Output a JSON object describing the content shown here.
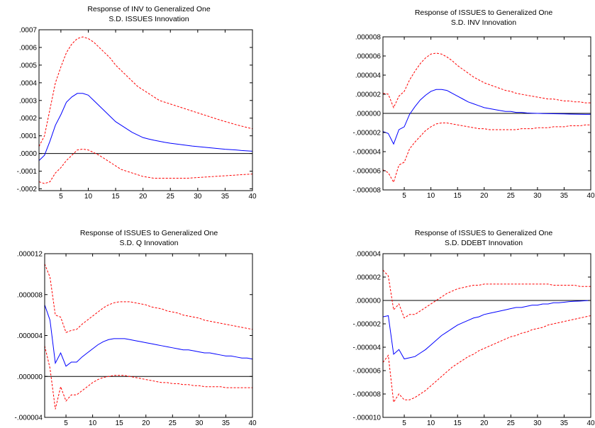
{
  "colors": {
    "impulse": "#0000ff",
    "band": "#ff0000",
    "zero_line": "#000000",
    "frame": "#000000"
  },
  "chart_data": [
    {
      "type": "line",
      "title": "Response of INV to Generalized One",
      "subtitle": "S.D. ISSUES Innovation",
      "xlabel": "",
      "ylabel": "",
      "xlim": [
        1,
        40
      ],
      "ylim": [
        -0.00021,
        0.0007
      ],
      "x_ticks": [
        5,
        10,
        15,
        20,
        25,
        30,
        35,
        40
      ],
      "x_tick_labels": [
        "5",
        "10",
        "15",
        "20",
        "25",
        "30",
        "35",
        "40"
      ],
      "y_ticks": [
        -0.0002,
        -0.0001,
        0,
        0.0001,
        0.0002,
        0.0003,
        0.0004,
        0.0005,
        0.0006,
        0.0007
      ],
      "y_tick_labels": [
        "-.0002",
        "-.0001",
        ".0000",
        ".0001",
        ".0002",
        ".0003",
        ".0004",
        ".0005",
        ".0006",
        ".0007"
      ],
      "x": [
        1,
        2,
        3,
        4,
        5,
        6,
        7,
        8,
        9,
        10,
        11,
        12,
        13,
        14,
        15,
        16,
        17,
        18,
        19,
        20,
        21,
        22,
        23,
        24,
        25,
        26,
        27,
        28,
        29,
        30,
        31,
        32,
        33,
        34,
        35,
        36,
        37,
        38,
        39,
        40
      ],
      "series": [
        {
          "role": "response",
          "style": "solid",
          "values": [
            -4e-05,
            -1e-05,
            7e-05,
            0.00016,
            0.00022,
            0.00029,
            0.00032,
            0.00034,
            0.00034,
            0.00033,
            0.0003,
            0.00027,
            0.00024,
            0.00021,
            0.00018,
            0.00016,
            0.00014,
            0.00012,
            0.000105,
            9e-05,
            8.2e-05,
            7.5e-05,
            6.9e-05,
            6.3e-05,
            5.8e-05,
            5.4e-05,
            5e-05,
            4.6e-05,
            4.2e-05,
            3.9e-05,
            3.6e-05,
            3.3e-05,
            3e-05,
            2.7e-05,
            2.4e-05,
            2.2e-05,
            2e-05,
            1.7e-05,
            1.5e-05,
            1.3e-05
          ]
        },
        {
          "role": "upper band",
          "style": "dashed",
          "values": [
            4e-05,
            0.0001,
            0.00025,
            0.0004,
            0.00049,
            0.00057,
            0.00062,
            0.00065,
            0.00066,
            0.00065,
            0.00063,
            0.0006,
            0.00057,
            0.00054,
            0.0005,
            0.00047,
            0.00044,
            0.00041,
            0.00038,
            0.00036,
            0.00034,
            0.00032,
            0.0003,
            0.00029,
            0.00028,
            0.00027,
            0.00026,
            0.00025,
            0.00024,
            0.00023,
            0.00022,
            0.00021,
            0.0002,
            0.00019,
            0.000181,
            0.000172,
            0.000163,
            0.000155,
            0.000147,
            0.00014
          ]
        },
        {
          "role": "lower band",
          "style": "dashed",
          "values": [
            -0.00016,
            -0.00017,
            -0.00016,
            -0.00011,
            -8e-05,
            -4e-05,
            -1e-05,
            2e-05,
            2.5e-05,
            2e-05,
            5e-06,
            -1e-05,
            -3e-05,
            -5e-05,
            -7e-05,
            -9e-05,
            -0.0001,
            -0.00011,
            -0.00012,
            -0.00013,
            -0.000135,
            -0.00014,
            -0.00014,
            -0.00014,
            -0.00014,
            -0.00014,
            -0.00014,
            -0.00014,
            -0.000138,
            -0.000136,
            -0.000134,
            -0.000132,
            -0.00013,
            -0.000128,
            -0.000126,
            -0.000124,
            -0.000122,
            -0.00012,
            -0.000118,
            -0.000116
          ]
        }
      ]
    },
    {
      "type": "line",
      "title": "Response of ISSUES to Generalized One",
      "subtitle": "S.D. INV Innovation",
      "xlabel": "",
      "ylabel": "",
      "xlim": [
        1,
        40
      ],
      "ylim": [
        -8e-06,
        8e-06
      ],
      "x_ticks": [
        5,
        10,
        15,
        20,
        25,
        30,
        35,
        40
      ],
      "x_tick_labels": [
        "5",
        "10",
        "15",
        "20",
        "25",
        "30",
        "35",
        "40"
      ],
      "y_ticks": [
        -8e-06,
        -6e-06,
        -4e-06,
        -2e-06,
        0,
        2e-06,
        4e-06,
        6e-06,
        8e-06
      ],
      "y_tick_labels": [
        "-.000008",
        "-.000006",
        "-.000004",
        "-.000002",
        ".000000",
        ".000002",
        ".000004",
        ".000006",
        ".000008"
      ],
      "x": [
        1,
        2,
        3,
        4,
        5,
        6,
        7,
        8,
        9,
        10,
        11,
        12,
        13,
        14,
        15,
        16,
        17,
        18,
        19,
        20,
        21,
        22,
        23,
        24,
        25,
        26,
        27,
        28,
        29,
        30,
        31,
        32,
        33,
        34,
        35,
        36,
        37,
        38,
        39,
        40
      ],
      "series": [
        {
          "role": "response",
          "style": "solid",
          "values": [
            -1.9e-06,
            -2.1e-06,
            -3.2e-06,
            -1.7e-06,
            -1.4e-06,
            -1e-07,
            7e-07,
            1.4e-06,
            1.9e-06,
            2.3e-06,
            2.5e-06,
            2.5e-06,
            2.4e-06,
            2.1e-06,
            1.8e-06,
            1.5e-06,
            1.2e-06,
            1e-06,
            8e-07,
            6e-07,
            5e-07,
            4e-07,
            3e-07,
            2e-07,
            2e-07,
            1e-07,
            1e-07,
            5e-08,
            2e-08,
            0.0,
            -2e-08,
            -3e-08,
            -4e-08,
            -5e-08,
            -6e-08,
            -7e-08,
            -8e-08,
            -9e-08,
            -1e-07,
            -1e-07
          ]
        },
        {
          "role": "upper band",
          "style": "dashed",
          "values": [
            2.1e-06,
            2e-06,
            6e-07,
            1.8e-06,
            2.3e-06,
            3.5e-06,
            4.4e-06,
            5.2e-06,
            5.8e-06,
            6.2e-06,
            6.3e-06,
            6.2e-06,
            5.9e-06,
            5.5e-06,
            5e-06,
            4.6e-06,
            4.2e-06,
            3.8e-06,
            3.5e-06,
            3.2e-06,
            3e-06,
            2.8e-06,
            2.6e-06,
            2.4e-06,
            2.3e-06,
            2.1e-06,
            2e-06,
            1.9e-06,
            1.8e-06,
            1.7e-06,
            1.6e-06,
            1.5e-06,
            1.5e-06,
            1.4e-06,
            1.3e-06,
            1.3e-06,
            1.2e-06,
            1.2e-06,
            1.1e-06,
            1.1e-06
          ]
        },
        {
          "role": "lower band",
          "style": "dashed",
          "values": [
            -5.9e-06,
            -6.2e-06,
            -7.2e-06,
            -5.4e-06,
            -5.1e-06,
            -3.7e-06,
            -3e-06,
            -2.4e-06,
            -1.8e-06,
            -1.4e-06,
            -1.1e-06,
            -1e-06,
            -1e-06,
            -1.1e-06,
            -1.2e-06,
            -1.3e-06,
            -1.4e-06,
            -1.5e-06,
            -1.6e-06,
            -1.6e-06,
            -1.7e-06,
            -1.7e-06,
            -1.7e-06,
            -1.7e-06,
            -1.7e-06,
            -1.7e-06,
            -1.6e-06,
            -1.6e-06,
            -1.6e-06,
            -1.5e-06,
            -1.5e-06,
            -1.5e-06,
            -1.4e-06,
            -1.4e-06,
            -1.4e-06,
            -1.3e-06,
            -1.3e-06,
            -1.3e-06,
            -1.2e-06,
            -1.2e-06
          ]
        }
      ]
    },
    {
      "type": "line",
      "title": "Response of ISSUES to Generalized One",
      "subtitle": "S.D. Q Innovation",
      "xlabel": "",
      "ylabel": "",
      "xlim": [
        1,
        40
      ],
      "ylim": [
        -4e-06,
        1.2e-05
      ],
      "x_ticks": [
        5,
        10,
        15,
        20,
        25,
        30,
        35,
        40
      ],
      "x_tick_labels": [
        "5",
        "10",
        "15",
        "20",
        "25",
        "30",
        "35",
        "40"
      ],
      "y_ticks": [
        -4e-06,
        0,
        4e-06,
        8e-06,
        1.2e-05
      ],
      "y_tick_labels": [
        "-.000004",
        ".000000",
        ".000004",
        ".000008",
        ".000012"
      ],
      "x": [
        1,
        2,
        3,
        4,
        5,
        6,
        7,
        8,
        9,
        10,
        11,
        12,
        13,
        14,
        15,
        16,
        17,
        18,
        19,
        20,
        21,
        22,
        23,
        24,
        25,
        26,
        27,
        28,
        29,
        30,
        31,
        32,
        33,
        34,
        35,
        36,
        37,
        38,
        39,
        40
      ],
      "series": [
        {
          "role": "response",
          "style": "solid",
          "values": [
            7e-06,
            5.5e-06,
            1.3e-06,
            2.3e-06,
            1e-06,
            1.4e-06,
            1.4e-06,
            1.9e-06,
            2.3e-06,
            2.7e-06,
            3.1e-06,
            3.4e-06,
            3.6e-06,
            3.7e-06,
            3.7e-06,
            3.7e-06,
            3.6e-06,
            3.5e-06,
            3.4e-06,
            3.3e-06,
            3.2e-06,
            3.1e-06,
            3e-06,
            2.9e-06,
            2.8e-06,
            2.7e-06,
            2.6e-06,
            2.6e-06,
            2.5e-06,
            2.4e-06,
            2.3e-06,
            2.3e-06,
            2.2e-06,
            2.1e-06,
            2e-06,
            2e-06,
            1.9e-06,
            1.8e-06,
            1.8e-06,
            1.7e-06
          ]
        },
        {
          "role": "upper band",
          "style": "dashed",
          "values": [
            1.1e-05,
            9.7e-06,
            6e-06,
            5.8e-06,
            4.3e-06,
            4.5e-06,
            4.6e-06,
            5.1e-06,
            5.5e-06,
            5.9e-06,
            6.3e-06,
            6.7e-06,
            7e-06,
            7.2e-06,
            7.3e-06,
            7.3e-06,
            7.3e-06,
            7.2e-06,
            7.1e-06,
            7e-06,
            6.8e-06,
            6.7e-06,
            6.6e-06,
            6.4e-06,
            6.3e-06,
            6.2e-06,
            6e-06,
            5.9e-06,
            5.8e-06,
            5.7e-06,
            5.5e-06,
            5.4e-06,
            5.3e-06,
            5.2e-06,
            5.1e-06,
            5e-06,
            4.9e-06,
            4.8e-06,
            4.7e-06,
            4.6e-06
          ]
        },
        {
          "role": "lower band",
          "style": "dashed",
          "values": [
            3e-06,
            8e-07,
            -3.2e-06,
            -1e-06,
            -2.4e-06,
            -1.8e-06,
            -1.8e-06,
            -1.4e-06,
            -1e-06,
            -6e-07,
            -3e-07,
            -1e-07,
            0.0,
            1e-07,
            1e-07,
            1e-07,
            0.0,
            -1e-07,
            -2e-07,
            -3e-07,
            -4e-07,
            -5e-07,
            -6e-07,
            -6e-07,
            -7e-07,
            -7e-07,
            -8e-07,
            -8e-07,
            -9e-07,
            -9e-07,
            -1e-06,
            -1e-06,
            -1e-06,
            -1e-06,
            -1.1e-06,
            -1.1e-06,
            -1.1e-06,
            -1.1e-06,
            -1.1e-06,
            -1.1e-06
          ]
        }
      ]
    },
    {
      "type": "line",
      "title": "Response of ISSUES to Generalized One",
      "subtitle": "S.D. DDEBT Innovation",
      "xlabel": "",
      "ylabel": "",
      "xlim": [
        1,
        40
      ],
      "ylim": [
        -1e-05,
        4e-06
      ],
      "x_ticks": [
        5,
        10,
        15,
        20,
        25,
        30,
        35,
        40
      ],
      "x_tick_labels": [
        "5",
        "10",
        "15",
        "20",
        "25",
        "30",
        "35",
        "40"
      ],
      "y_ticks": [
        -1e-05,
        -8e-06,
        -6e-06,
        -4e-06,
        -2e-06,
        0,
        2e-06,
        4e-06
      ],
      "y_tick_labels": [
        "-.000010",
        "-.000008",
        "-.000006",
        "-.000004",
        "-.000002",
        ".000000",
        ".000002",
        ".000004"
      ],
      "x": [
        1,
        2,
        3,
        4,
        5,
        6,
        7,
        8,
        9,
        10,
        11,
        12,
        13,
        14,
        15,
        16,
        17,
        18,
        19,
        20,
        21,
        22,
        23,
        24,
        25,
        26,
        27,
        28,
        29,
        30,
        31,
        32,
        33,
        34,
        35,
        36,
        37,
        38,
        39,
        40
      ],
      "series": [
        {
          "role": "response",
          "style": "solid",
          "values": [
            -1.4e-06,
            -1.3e-06,
            -4.6e-06,
            -4.2e-06,
            -5e-06,
            -4.9e-06,
            -4.8e-06,
            -4.5e-06,
            -4.2e-06,
            -3.8e-06,
            -3.4e-06,
            -3e-06,
            -2.7e-06,
            -2.4e-06,
            -2.1e-06,
            -1.9e-06,
            -1.7e-06,
            -1.5e-06,
            -1.4e-06,
            -1.2e-06,
            -1.1e-06,
            -1e-06,
            -9e-07,
            -8e-07,
            -7e-07,
            -6e-07,
            -6e-07,
            -5e-07,
            -4e-07,
            -4e-07,
            -3e-07,
            -3e-07,
            -2e-07,
            -2e-07,
            -1.5e-07,
            -1e-07,
            -7e-08,
            -5e-08,
            -2e-08,
            0.0
          ]
        },
        {
          "role": "upper band",
          "style": "dashed",
          "values": [
            2.6e-06,
            2.1e-06,
            -8e-07,
            -3e-07,
            -1.5e-06,
            -1.2e-06,
            -1.2e-06,
            -9e-07,
            -6e-07,
            -3e-07,
            0.0,
            3e-07,
            6e-07,
            8e-07,
            1e-06,
            1.1e-06,
            1.2e-06,
            1.3e-06,
            1.3e-06,
            1.4e-06,
            1.4e-06,
            1.4e-06,
            1.4e-06,
            1.4e-06,
            1.4e-06,
            1.4e-06,
            1.4e-06,
            1.4e-06,
            1.4e-06,
            1.4e-06,
            1.4e-06,
            1.4e-06,
            1.3e-06,
            1.3e-06,
            1.3e-06,
            1.3e-06,
            1.3e-06,
            1.2e-06,
            1.2e-06,
            1.2e-06
          ]
        },
        {
          "role": "lower band",
          "style": "dashed",
          "values": [
            -5.3e-06,
            -4.7e-06,
            -8.7e-06,
            -8e-06,
            -8.5e-06,
            -8.5e-06,
            -8.3e-06,
            -8e-06,
            -7.7e-06,
            -7.3e-06,
            -6.9e-06,
            -6.5e-06,
            -6.1e-06,
            -5.7e-06,
            -5.4e-06,
            -5.1e-06,
            -4.8e-06,
            -4.6e-06,
            -4.3e-06,
            -4.1e-06,
            -3.9e-06,
            -3.7e-06,
            -3.5e-06,
            -3.3e-06,
            -3.1e-06,
            -3e-06,
            -2.8e-06,
            -2.7e-06,
            -2.5e-06,
            -2.4e-06,
            -2.3e-06,
            -2.1e-06,
            -2e-06,
            -1.9e-06,
            -1.8e-06,
            -1.7e-06,
            -1.6e-06,
            -1.5e-06,
            -1.4e-06,
            -1.3e-06
          ]
        }
      ]
    }
  ]
}
